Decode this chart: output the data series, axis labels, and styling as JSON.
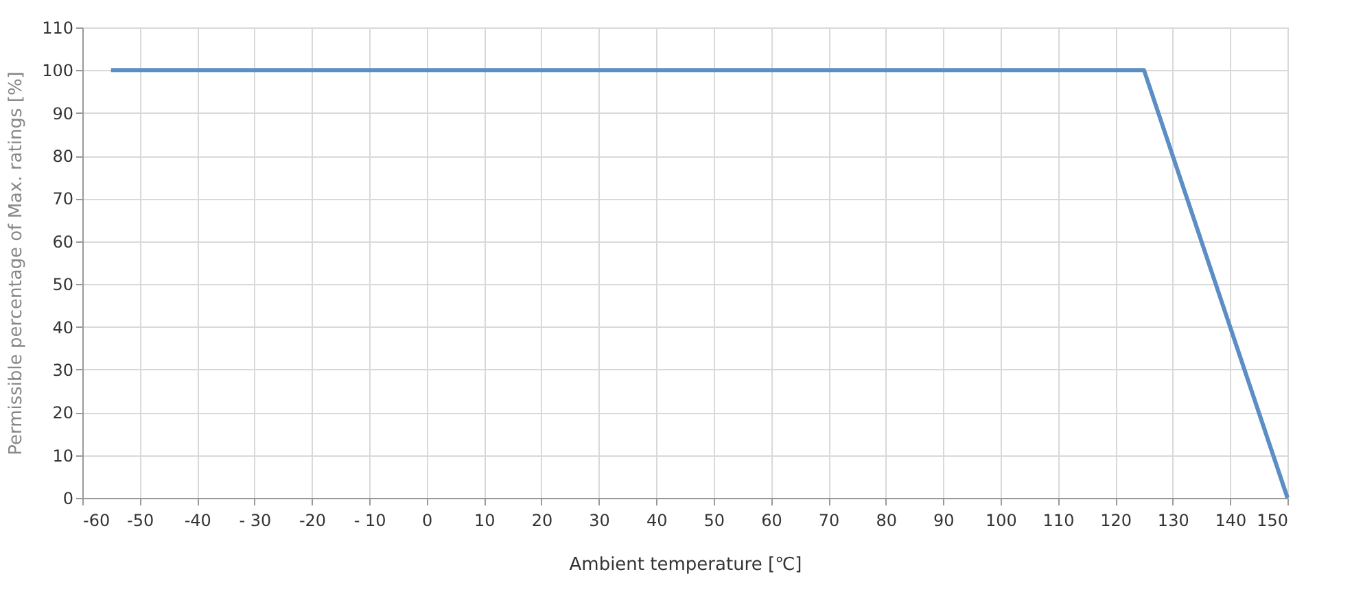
{
  "chart_data": {
    "type": "line",
    "xlabel": "Ambient temperature [℃]",
    "ylabel": "Permissible percentage of Max. ratings [%]",
    "x": [
      -55,
      125,
      150
    ],
    "series": [
      {
        "color": "#5b8ec4",
        "values": [
          100,
          100,
          0
        ]
      }
    ],
    "xlim": [
      -60,
      150
    ],
    "xticks": [
      -60,
      -50,
      -40,
      {
        "value": -30,
        "label": "- 30"
      },
      -20,
      {
        "value": -10,
        "label": "- 10"
      },
      0,
      10,
      20,
      30,
      40,
      50,
      60,
      70,
      80,
      90,
      100,
      110,
      120,
      130,
      140,
      150
    ],
    "ylim": [
      0,
      110
    ],
    "yticks": [
      0,
      10,
      20,
      30,
      40,
      50,
      60,
      70,
      80,
      90,
      100,
      110
    ],
    "grid": true,
    "marker": "none",
    "line_style": "solid"
  }
}
